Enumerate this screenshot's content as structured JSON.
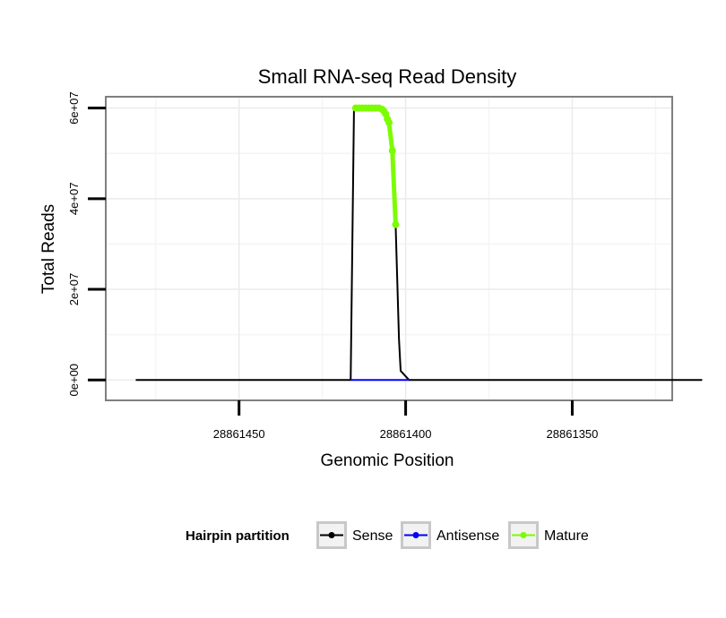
{
  "chart_data": {
    "type": "line",
    "title": "Small RNA-seq Read Density",
    "xlabel": "Genomic Position",
    "ylabel": "Total Reads",
    "x_reversed": true,
    "xlim": [
      28861490,
      28861320
    ],
    "ylim": [
      -4500000,
      62500000
    ],
    "x_ticks": [
      28861450,
      28861400,
      28861350
    ],
    "x_tick_labels": [
      "28861450",
      "28861400",
      "28861350"
    ],
    "y_ticks": [
      0,
      20000000,
      40000000,
      60000000
    ],
    "y_tick_labels": [
      "0e+00",
      "2e+07",
      "4e+07",
      "6e+07"
    ],
    "grid": true,
    "legend": {
      "title": "Hairpin partition",
      "position": "bottom",
      "entries": [
        {
          "label": "Sense",
          "color": "#000000"
        },
        {
          "label": "Antisense",
          "color": "#0000ff"
        },
        {
          "label": "Mature",
          "color": "#7cfc00"
        }
      ]
    },
    "series": [
      {
        "name": "Sense",
        "color": "#000000",
        "x": [
          28861481,
          28861416.5,
          28861415.5,
          28861410,
          28861408,
          28861406,
          28861405,
          28861404,
          28861403,
          28861402,
          28861401.5,
          28861399,
          28861311
        ],
        "y": [
          0,
          0,
          60000000,
          60000000,
          60000000,
          59000000,
          57000000,
          50000000,
          34000000,
          9000000,
          2000000,
          0,
          0
        ]
      },
      {
        "name": "Antisense",
        "color": "#0000ff",
        "x": [
          28861416.5,
          28861399
        ],
        "y": [
          0,
          0
        ]
      },
      {
        "name": "Mature",
        "color": "#7cfc00",
        "x": [
          28861415,
          28861414,
          28861413,
          28861412,
          28861411,
          28861410,
          28861409,
          28861408,
          28861407,
          28861406.5,
          28861406,
          28861405.5,
          28861405,
          28861404,
          28861403
        ],
        "y": [
          60000000,
          60000000,
          60000000,
          60000000,
          60000000,
          60000000,
          60000000,
          60000000,
          59700000,
          59300000,
          58700000,
          57600000,
          56800000,
          50600000,
          34300000
        ]
      }
    ]
  }
}
